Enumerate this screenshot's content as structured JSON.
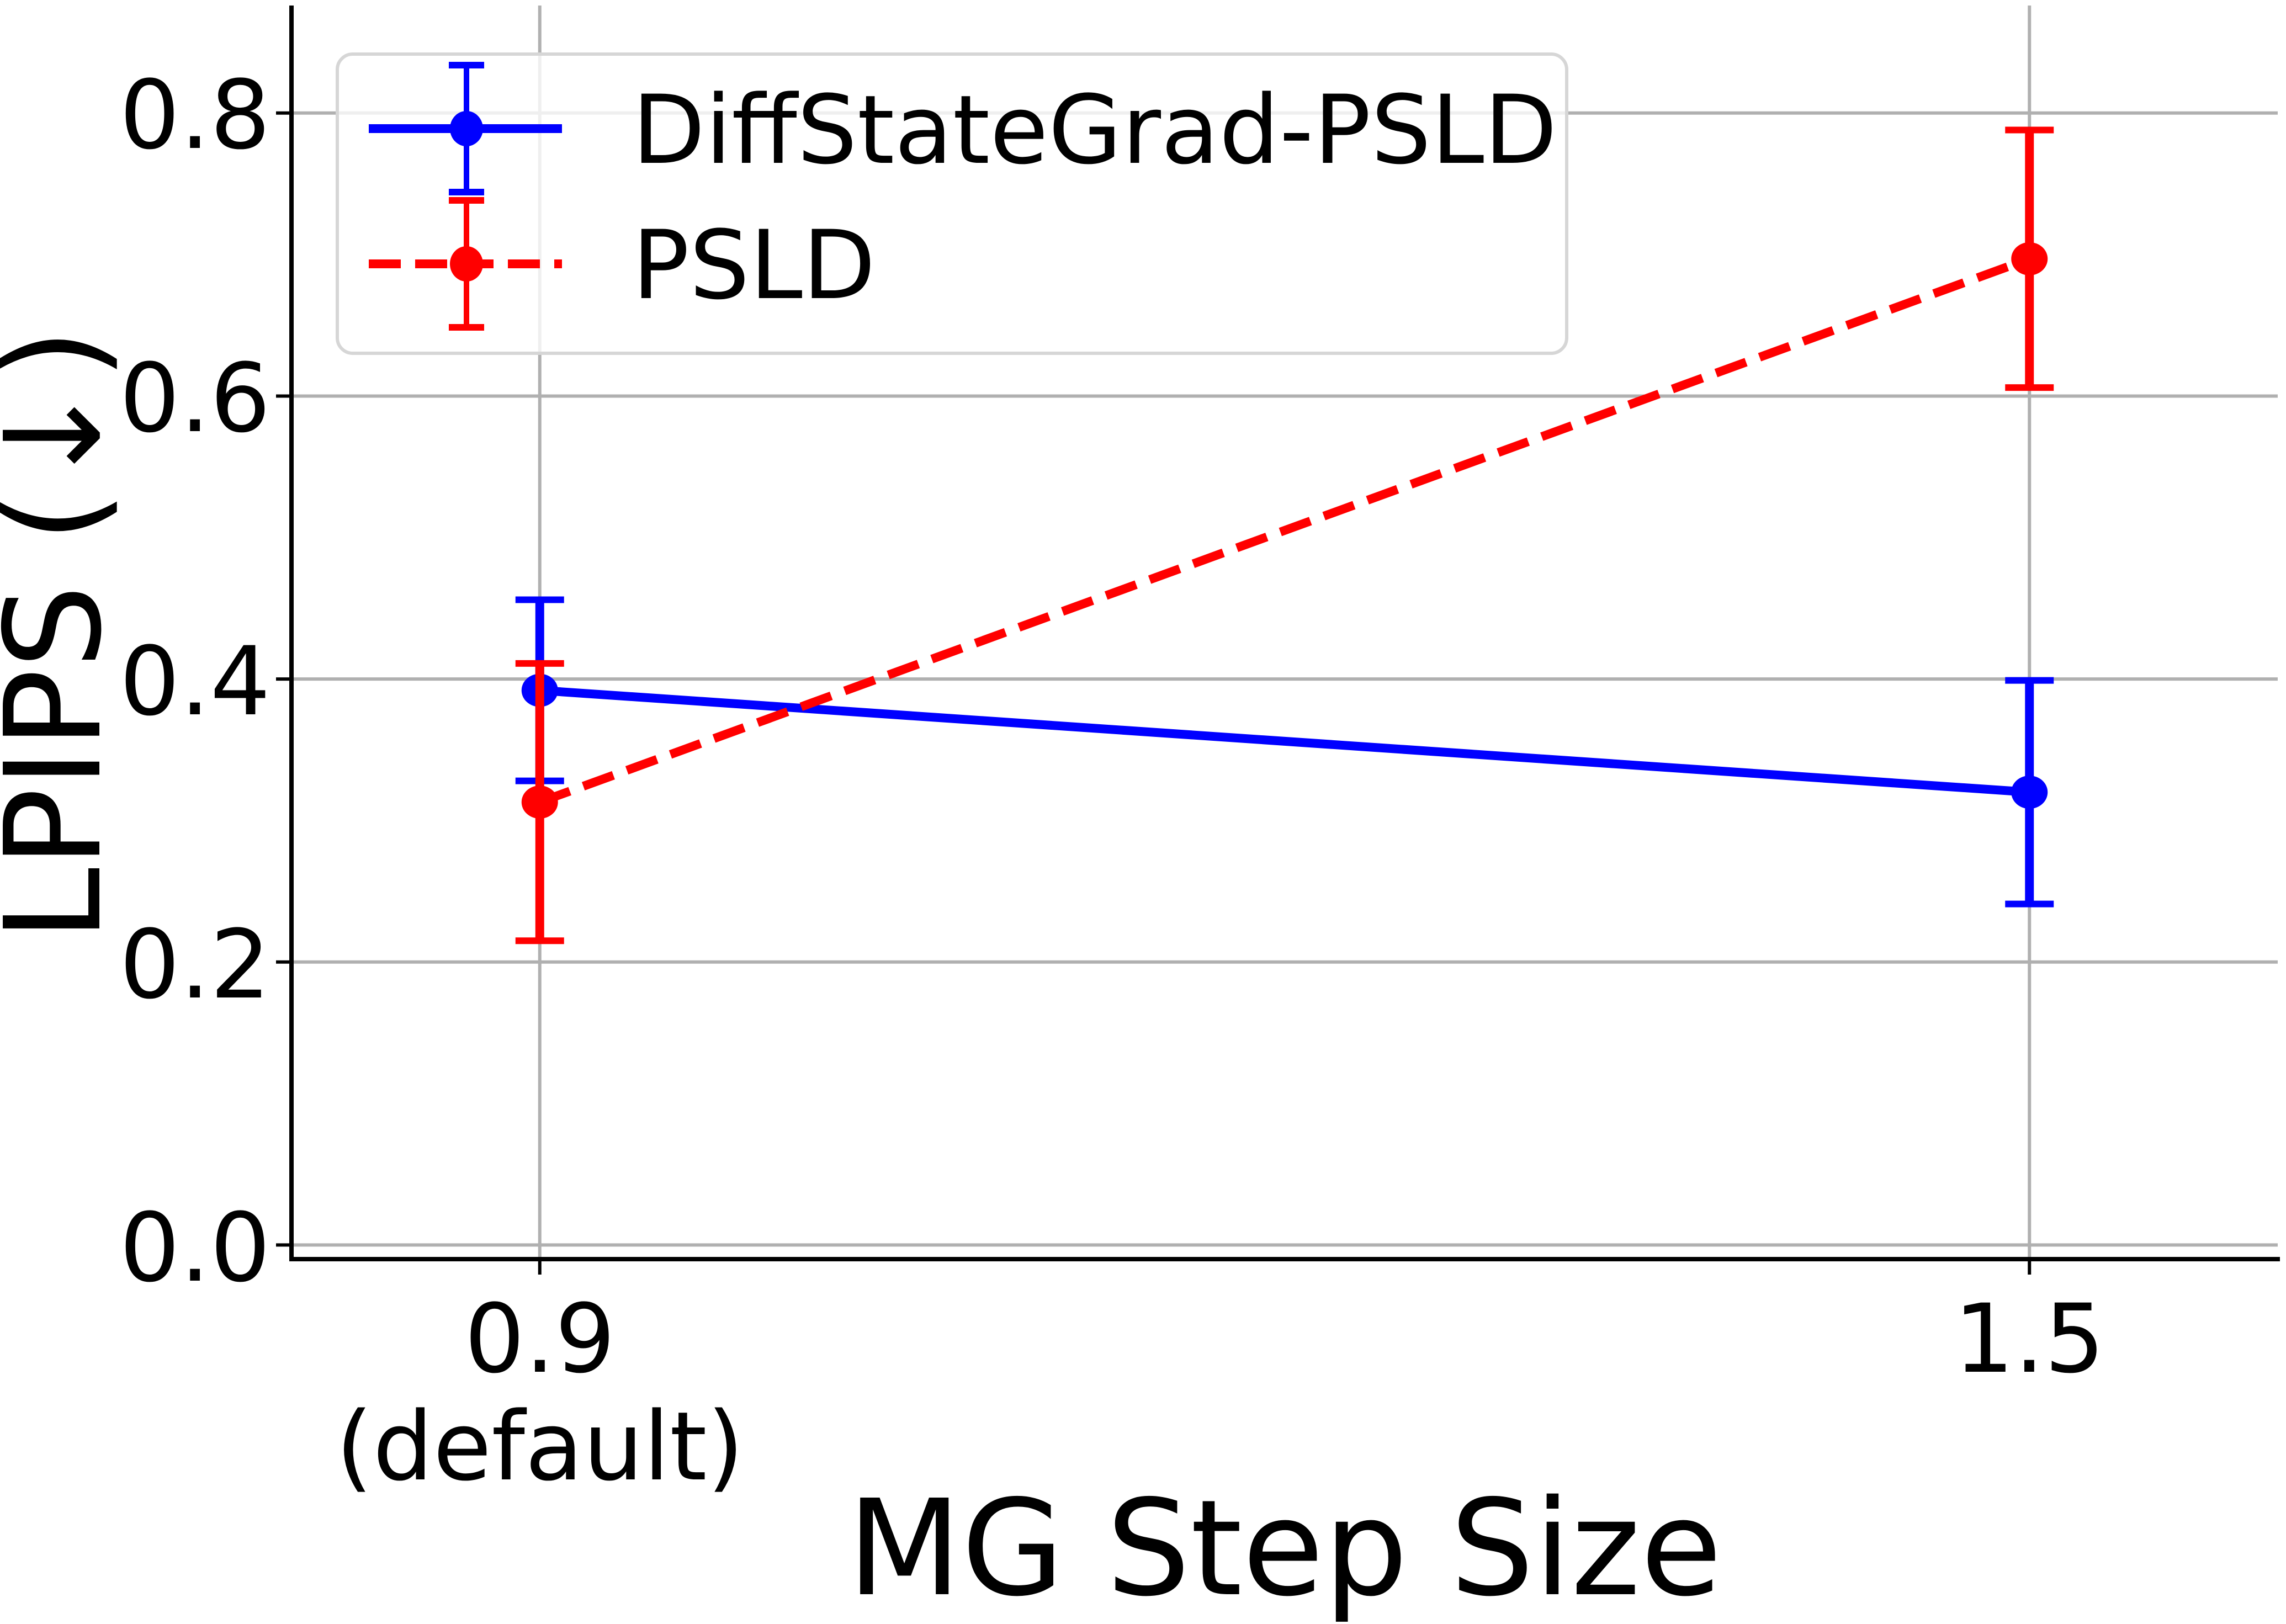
{
  "chart_data": {
    "type": "line",
    "title": "",
    "xlabel": "MG Step Size",
    "ylabel": "LPIPS (↓)",
    "x": [
      0.9,
      1.5
    ],
    "x_tick_labels": [
      [
        "0.9",
        "(default)"
      ],
      [
        "1.5"
      ]
    ],
    "xlim": [
      0.8,
      1.6
    ],
    "ylim": [
      -0.01,
      0.876
    ],
    "y_ticks": [
      0.0,
      0.2,
      0.4,
      0.6,
      0.8
    ],
    "y_tick_labels": [
      "0.0",
      "0.2",
      "0.4",
      "0.6",
      "0.8"
    ],
    "grid": true,
    "legend_position": "upper left",
    "error_bars": true,
    "series": [
      {
        "name": "DiffStateGrad-PSLD",
        "color": "#0000ff",
        "line_style": "solid",
        "marker": "circle",
        "values": [
          0.392,
          0.32
        ],
        "error_low": [
          0.328,
          0.241
        ],
        "error_high": [
          0.456,
          0.399
        ]
      },
      {
        "name": "PSLD",
        "color": "#ff0000",
        "line_style": "dashed",
        "marker": "circle",
        "values": [
          0.313,
          0.697
        ],
        "error_low": [
          0.215,
          0.606
        ],
        "error_high": [
          0.411,
          0.788
        ]
      }
    ]
  },
  "legend": {
    "items": [
      {
        "label": "DiffStateGrad-PSLD"
      },
      {
        "label": "PSLD"
      }
    ]
  },
  "axes": {
    "x_title": "MG Step Size",
    "y_title": "LPIPS (↓)",
    "x_ticks": [
      {
        "line1": "0.9",
        "line2": "(default)"
      },
      {
        "line1": "1.5",
        "line2": ""
      }
    ],
    "y_ticks": [
      "0.0",
      "0.2",
      "0.4",
      "0.6",
      "0.8"
    ]
  },
  "style": {
    "grid_color": "#b0b0b0",
    "legend_border_color": "#d6d6d6",
    "spine_color": "#000000"
  }
}
